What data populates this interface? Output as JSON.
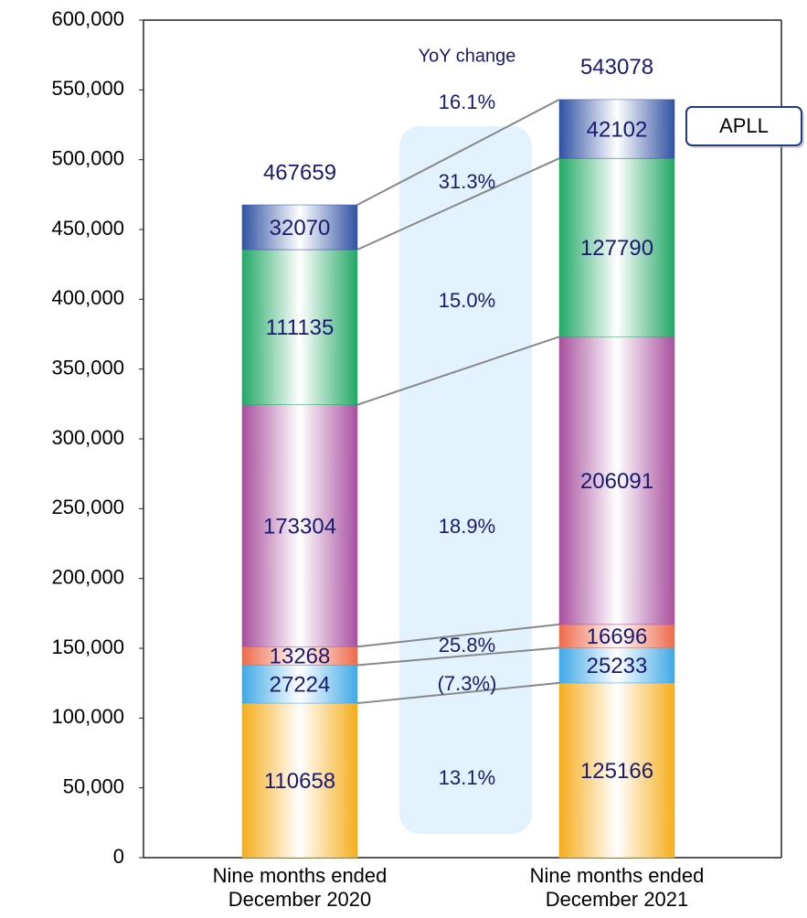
{
  "chart_data": {
    "type": "stacked_bar",
    "categories": [
      "Nine months ended December 2020",
      "Nine months ended December 2021"
    ],
    "series": [
      {
        "color": "#f5ad1b",
        "values": [
          110658,
          125166
        ]
      },
      {
        "color": "#3fa9e6",
        "values": [
          27224,
          25233
        ]
      },
      {
        "color": "#ee6a4a",
        "values": [
          13268,
          16696
        ]
      },
      {
        "color": "#a8509e",
        "values": [
          173304,
          206091
        ]
      },
      {
        "color": "#22a865",
        "values": [
          111135,
          127790
        ]
      },
      {
        "name": "APLL",
        "color": "#3152a3",
        "values": [
          32070,
          42102
        ]
      }
    ],
    "totals": [
      467659,
      543078
    ],
    "ylim": [
      0,
      600000
    ],
    "yticks": [
      0,
      {
        "value": 50000,
        "label": "50,000"
      },
      {
        "value": 100000,
        "label": "100,000"
      },
      {
        "value": 150000,
        "label": "150,000"
      },
      {
        "value": 200000,
        "label": "200,000"
      },
      {
        "value": 250000,
        "label": "250,000"
      },
      {
        "value": 300000,
        "label": "300,000"
      },
      {
        "value": 350000,
        "label": "350,000"
      },
      {
        "value": 400000,
        "label": "400,000"
      },
      {
        "value": 450000,
        "label": "450,000"
      },
      {
        "value": 500000,
        "label": "500,000"
      },
      {
        "value": 550000,
        "label": "550,000"
      },
      {
        "value": 600000,
        "label": "600,000"
      }
    ],
    "yoy": {
      "title": "YoY change",
      "labels": [
        "13.1%",
        "(7.3%)",
        "25.8%",
        "18.9%",
        "15.0%",
        "31.3%"
      ],
      "total_label": "16.1%"
    }
  }
}
